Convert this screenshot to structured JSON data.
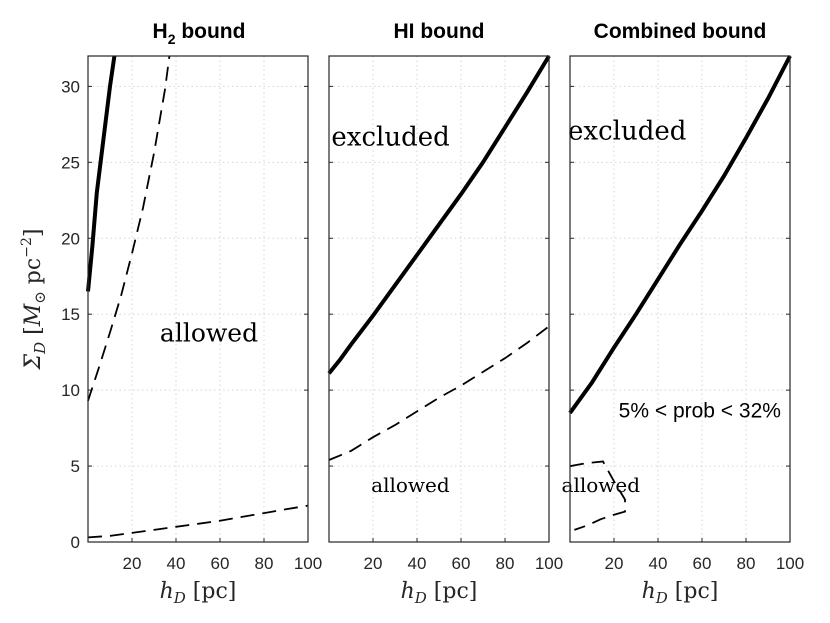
{
  "chart_data": [
    {
      "type": "line",
      "title": "H₂ bound",
      "title_main": "H",
      "title_sub": "2",
      "title_rest": " bound",
      "xlabel": "h_D [pc]",
      "ylabel": "Σ_D [M_⊙ pc^-2]",
      "xlim": [
        0,
        100
      ],
      "ylim": [
        0,
        32
      ],
      "xticks": [
        "20",
        "40",
        "60",
        "80",
        "100"
      ],
      "yticks": [
        "0",
        "5",
        "10",
        "15",
        "20",
        "25",
        "30"
      ],
      "grid": true,
      "series": [
        {
          "style": "solid",
          "x": [
            0,
            2,
            4,
            7,
            10,
            12
          ],
          "y": [
            16.5,
            19.5,
            23.0,
            26.5,
            30.0,
            32.0
          ]
        },
        {
          "style": "dashed",
          "x": [
            0,
            5,
            10,
            15,
            20,
            25,
            30,
            35,
            37
          ],
          "y": [
            9.3,
            11.5,
            13.8,
            16.2,
            19.0,
            22.0,
            25.6,
            29.8,
            32.0
          ]
        },
        {
          "style": "dashed",
          "x": [
            0,
            10,
            20,
            30,
            40,
            50,
            60,
            70,
            80,
            90,
            100
          ],
          "y": [
            0.3,
            0.4,
            0.6,
            0.8,
            1.0,
            1.2,
            1.4,
            1.65,
            1.9,
            2.15,
            2.4
          ]
        }
      ],
      "annotations": [
        {
          "text": "allowed",
          "x": 55,
          "y": 13.2,
          "font": "serif",
          "size": 25
        }
      ]
    },
    {
      "type": "line",
      "title": "HI  bound",
      "xlabel": "h_D [pc]",
      "xlim": [
        0,
        100
      ],
      "ylim": [
        0,
        32
      ],
      "xticks": [
        "20",
        "40",
        "60",
        "80",
        "100"
      ],
      "grid": true,
      "series": [
        {
          "style": "solid",
          "x": [
            0,
            5,
            10,
            20,
            30,
            40,
            50,
            60,
            70,
            80,
            90,
            100
          ],
          "y": [
            11.1,
            12.0,
            13.0,
            14.9,
            16.9,
            18.9,
            20.9,
            22.9,
            25.0,
            27.3,
            29.6,
            32.0
          ]
        },
        {
          "style": "dashed",
          "x": [
            0,
            10,
            20,
            30,
            40,
            50,
            60,
            70,
            80,
            90,
            100
          ],
          "y": [
            5.4,
            6.0,
            6.9,
            7.7,
            8.6,
            9.5,
            10.3,
            11.2,
            12.1,
            13.1,
            14.2
          ]
        }
      ],
      "annotations": [
        {
          "text": "excluded",
          "x": 28,
          "y": 26.1,
          "font": "serif",
          "size": 26
        },
        {
          "text": "allowed",
          "x": 37,
          "y": 3.3,
          "font": "serif",
          "size": 20
        }
      ]
    },
    {
      "type": "line",
      "title": "Combined bound",
      "xlabel": "h_D [pc]",
      "xlim": [
        0,
        100
      ],
      "ylim": [
        0,
        32
      ],
      "xticks": [
        "20",
        "40",
        "60",
        "80",
        "100"
      ],
      "grid": true,
      "series": [
        {
          "style": "solid",
          "x": [
            0,
            10,
            20,
            30,
            40,
            50,
            60,
            70,
            80,
            90,
            100
          ],
          "y": [
            8.5,
            10.5,
            12.8,
            15.0,
            17.3,
            19.6,
            21.8,
            24.1,
            26.6,
            29.2,
            32.0
          ]
        },
        {
          "style": "dashed",
          "x": [
            0,
            8,
            15,
            20,
            25,
            25,
            20,
            14,
            8,
            2
          ],
          "y": [
            5.0,
            5.2,
            5.3,
            4.0,
            2.8,
            2.0,
            1.8,
            1.5,
            1.1,
            0.8
          ]
        }
      ],
      "annotations": [
        {
          "text": "excluded",
          "x": 26,
          "y": 26.5,
          "font": "serif",
          "size": 26
        },
        {
          "text": "5% < prob < 32%",
          "x": 59,
          "y": 8.2,
          "font": "sans",
          "size": 21
        },
        {
          "text": "allowed",
          "x": 14,
          "y": 3.3,
          "font": "serif",
          "size": 20
        }
      ]
    }
  ]
}
